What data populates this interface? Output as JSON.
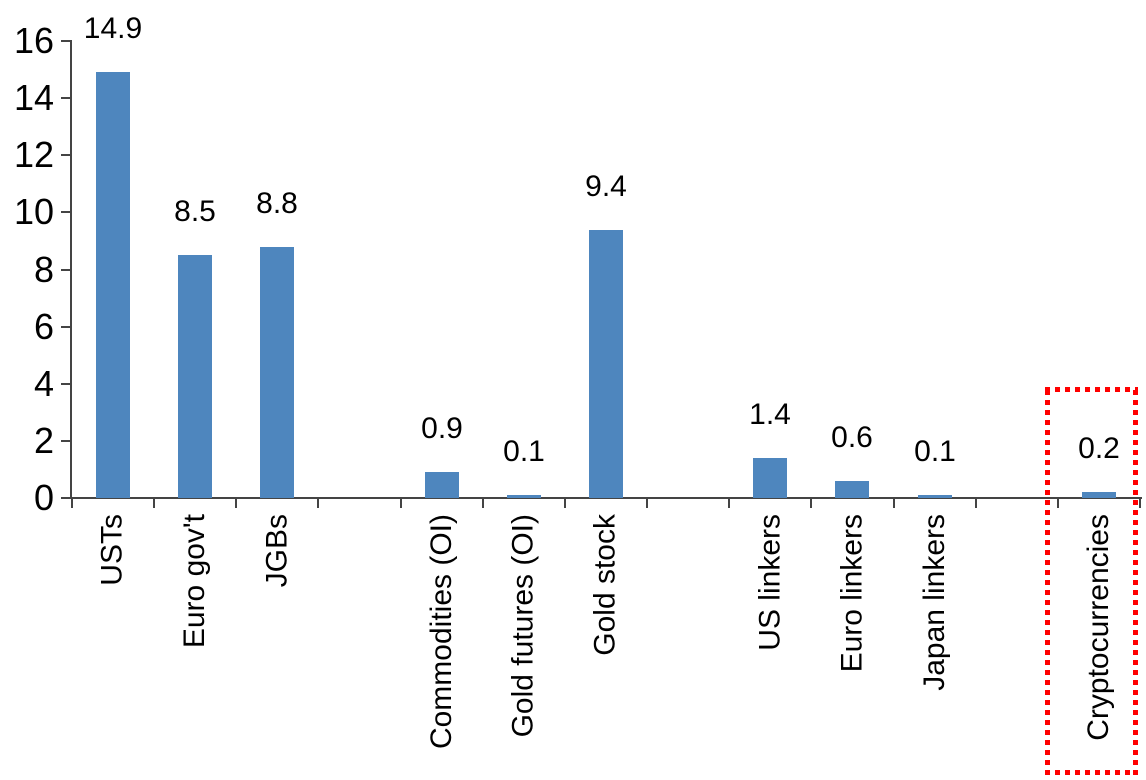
{
  "chart_data": {
    "type": "bar",
    "title": "",
    "xlabel": "",
    "ylabel": "",
    "categories": [
      "USTs",
      "Euro gov't",
      "JGBs",
      "Commodities (OI)",
      "Gold futures (OI)",
      "Gold stock",
      "US linkers",
      "Euro linkers",
      "Japan linkers",
      "Cryptocurrencies"
    ],
    "values": [
      14.9,
      8.5,
      8.8,
      0.9,
      0.1,
      9.4,
      1.4,
      0.6,
      0.1,
      0.2
    ],
    "data_labels": [
      "14.9",
      "8.5",
      "8.8",
      "0.9",
      "0.1",
      "9.4",
      "1.4",
      "0.6",
      "0.1",
      "0.2"
    ],
    "slots": [
      0,
      1,
      2,
      4,
      5,
      6,
      8,
      9,
      10,
      12
    ],
    "total_slots": 13,
    "ylim": [
      0,
      16
    ],
    "yticks": [
      0,
      2,
      4,
      6,
      8,
      10,
      12,
      14,
      16
    ],
    "ytick_labels": [
      "0",
      "2",
      "4",
      "6",
      "8",
      "10",
      "12",
      "14",
      "16"
    ],
    "grid": false,
    "legend": false,
    "bar_color": "#4E86BE",
    "axis_color": "#444444",
    "text_color": "#000000",
    "highlight": {
      "category": "Cryptocurrencies",
      "style": "red-dotted-box",
      "color": "#FF0000"
    }
  }
}
